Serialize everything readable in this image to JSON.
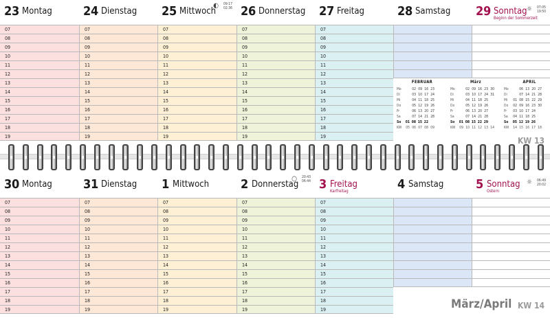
{
  "hours": [
    "07",
    "08",
    "09",
    "10",
    "11",
    "12",
    "13",
    "14",
    "15",
    "16",
    "17",
    "18",
    "19"
  ],
  "colors": {
    "mon": "#fbe0df",
    "tue": "#fde7d6",
    "wed": "#fdf0d5",
    "thu": "#eef3d9",
    "fri": "#daf0f2",
    "sat": "#dbe6f7",
    "sun": "#ffffff",
    "accent": "#a3124f"
  },
  "week13": {
    "days": [
      {
        "num": "23",
        "name": "Montag"
      },
      {
        "num": "24",
        "name": "Dienstag"
      },
      {
        "num": "25",
        "name": "Mittwoch",
        "moon_rise": "09:17",
        "moon_set": "02:36"
      },
      {
        "num": "26",
        "name": "Donnerstag"
      },
      {
        "num": "27",
        "name": "Freitag"
      },
      {
        "num": "28",
        "name": "Samstag"
      },
      {
        "num": "29",
        "name": "Sonntag",
        "sub": "Beginn der Sommerzeit",
        "sun_rise": "07:05",
        "sun_set": "19:50"
      }
    ],
    "kw": "KW 13"
  },
  "week14": {
    "days": [
      {
        "num": "30",
        "name": "Montag"
      },
      {
        "num": "31",
        "name": "Dienstag"
      },
      {
        "num": "1",
        "name": "Mittwoch"
      },
      {
        "num": "2",
        "name": "Donnerstag",
        "moon_rise": "20:43",
        "moon_set": "06:44"
      },
      {
        "num": "3",
        "name": "Freitag",
        "sub": "Karfreitag"
      },
      {
        "num": "4",
        "name": "Samstag"
      },
      {
        "num": "5",
        "name": "Sonntag",
        "sub": "Ostern",
        "sun_rise": "06:49",
        "sun_set": "20:02"
      }
    ],
    "kw": "KW 14",
    "month": "März/April"
  },
  "minical": {
    "labels": [
      "Mo",
      "Di",
      "Mi",
      "Do",
      "Fr",
      "Sa",
      "So",
      "KW"
    ],
    "months": [
      {
        "name": "FEBRUAR",
        "rows": [
          [
            "",
            "02",
            "09",
            "16",
            "23"
          ],
          [
            "",
            "03",
            "10",
            "17",
            "24"
          ],
          [
            "",
            "04",
            "11",
            "18",
            "25"
          ],
          [
            "",
            "05",
            "12",
            "19",
            "26"
          ],
          [
            "",
            "06",
            "13",
            "20",
            "27"
          ],
          [
            "",
            "07",
            "14",
            "21",
            "28"
          ],
          [
            "01",
            "08",
            "15",
            "22",
            ""
          ],
          [
            "05",
            "06",
            "07",
            "08",
            "09"
          ]
        ]
      },
      {
        "name": "März",
        "rows": [
          [
            "",
            "02",
            "09",
            "16",
            "23",
            "30"
          ],
          [
            "",
            "03",
            "10",
            "17",
            "24",
            "31"
          ],
          [
            "",
            "04",
            "11",
            "18",
            "25",
            ""
          ],
          [
            "",
            "05",
            "12",
            "19",
            "26",
            ""
          ],
          [
            "",
            "06",
            "13",
            "20",
            "27",
            ""
          ],
          [
            "",
            "07",
            "14",
            "21",
            "28",
            ""
          ],
          [
            "01",
            "08",
            "15",
            "22",
            "29",
            ""
          ],
          [
            "09",
            "10",
            "11",
            "12",
            "13",
            "14"
          ]
        ]
      },
      {
        "name": "APRIL",
        "rows": [
          [
            "",
            "06",
            "13",
            "20",
            "27"
          ],
          [
            "",
            "07",
            "14",
            "21",
            "28"
          ],
          [
            "01",
            "08",
            "15",
            "22",
            "29"
          ],
          [
            "02",
            "09",
            "16",
            "23",
            "30"
          ],
          [
            "03",
            "10",
            "17",
            "24",
            ""
          ],
          [
            "04",
            "11",
            "18",
            "25",
            ""
          ],
          [
            "05",
            "12",
            "19",
            "26",
            ""
          ],
          [
            "14",
            "15",
            "16",
            "17",
            "18"
          ]
        ]
      }
    ]
  }
}
